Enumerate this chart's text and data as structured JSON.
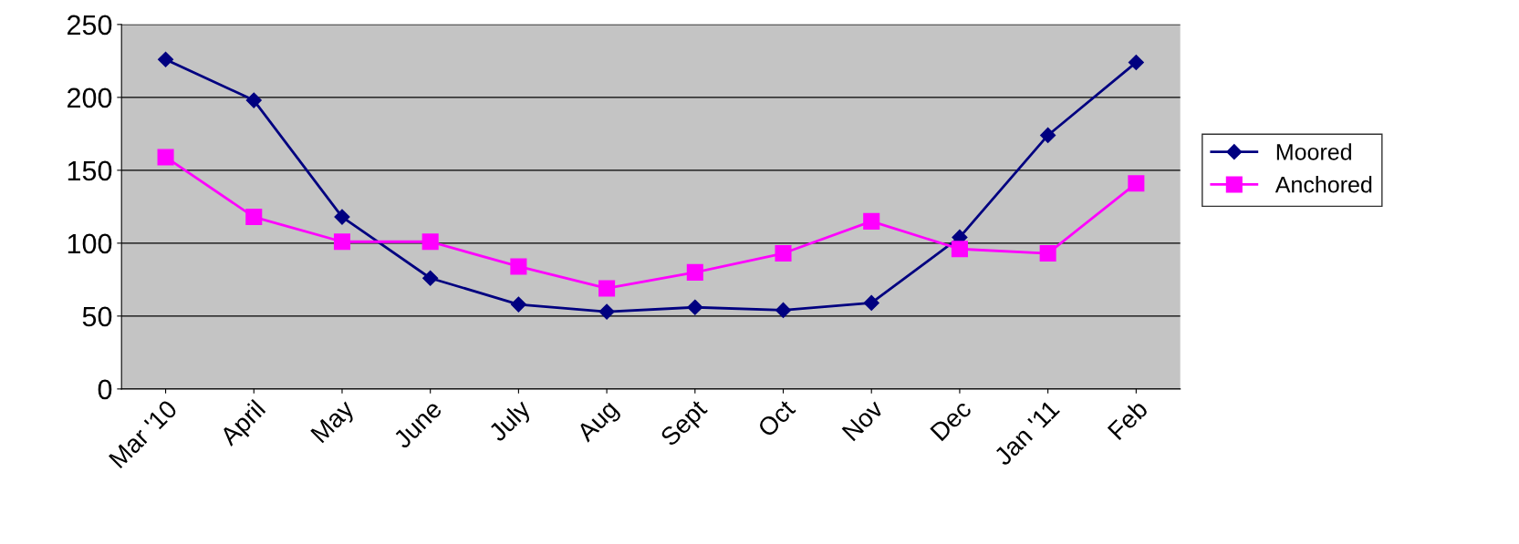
{
  "chart_data": {
    "type": "line",
    "categories": [
      "Mar '10",
      "April",
      "May",
      "June",
      "July",
      "Aug",
      "Sept",
      "Oct",
      "Nov",
      "Dec",
      "Jan '11",
      "Feb"
    ],
    "series": [
      {
        "name": "Moored",
        "color": "#000080",
        "marker": "diamond",
        "values": [
          226,
          198,
          118,
          76,
          58,
          53,
          56,
          54,
          59,
          104,
          174,
          224
        ]
      },
      {
        "name": "Anchored",
        "color": "#ff00ff",
        "marker": "square",
        "values": [
          159,
          118,
          101,
          101,
          84,
          69,
          80,
          93,
          115,
          96,
          93,
          141
        ]
      }
    ],
    "ylim": [
      0,
      250
    ],
    "yticks": [
      0,
      50,
      100,
      150,
      200,
      250
    ],
    "grid": "y",
    "legend": "right",
    "line_style": "solid"
  }
}
